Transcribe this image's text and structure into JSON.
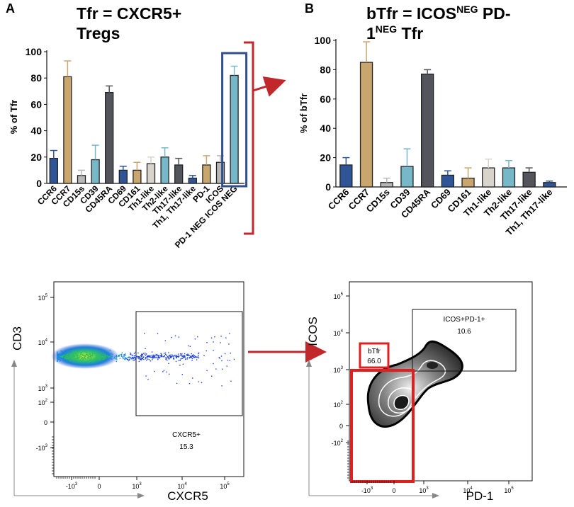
{
  "panels": {
    "a": {
      "letter": "A",
      "title_line1": "Tfr = CXCR5+",
      "title_line2": "Tregs"
    },
    "b": {
      "letter": "B",
      "title_pre": "bTfr = ICOS",
      "title_sup1": "NEG",
      "title_mid": " PD-",
      "title_line2_pre": "1",
      "title_sup2": "NEG",
      "title_line2_post": " Tfr"
    }
  },
  "chart_data": [
    {
      "type": "bar",
      "title": "Tfr = CXCR5+ Tregs",
      "ylabel": "% of Tfr",
      "xlabel": "",
      "ylim": [
        0,
        100
      ],
      "yticks": [
        "0",
        "20",
        "40",
        "60",
        "80",
        "100"
      ],
      "categories": [
        "CCR6",
        "CCR7",
        "CD15s",
        "CD39",
        "CD45RA",
        "CD69",
        "CD161",
        "Th1-like",
        "Th2-like",
        "Th17-like",
        "Th1, Th17-like",
        "PD-1",
        "ICOS",
        "PD-1 NEG ICOS NEG"
      ],
      "values": [
        19,
        81,
        6,
        18,
        69,
        10,
        10,
        15,
        20,
        14,
        4,
        14,
        16,
        82
      ],
      "errors": [
        6,
        12,
        4,
        11,
        5,
        3,
        6,
        5,
        7,
        5,
        2,
        7,
        5,
        7
      ],
      "colors": [
        "#2f5597",
        "#c8a66e",
        "#b8b8b8",
        "#76b7c8",
        "#54545c",
        "#2f5597",
        "#c8a66e",
        "#d8d4cc",
        "#76b7c8",
        "#54545c",
        "#2f5597",
        "#c8a66e",
        "#b8b8b8",
        "#76b7c8"
      ],
      "highlight_color": "#2f4f8f",
      "bracket_color": "#c0282c"
    },
    {
      "type": "bar",
      "title": "bTfr = ICOS NEG PD-1 NEG Tfr",
      "ylabel": "% of bTfr",
      "xlabel": "",
      "ylim": [
        0,
        100
      ],
      "yticks": [
        "0",
        "20",
        "40",
        "60",
        "80",
        "100"
      ],
      "categories": [
        "CCR6",
        "CCR7",
        "CD15s",
        "CD39",
        "CD45RA",
        "CD69",
        "CD161",
        "Th1-like",
        "Th2-like",
        "Th17-like",
        "Th1, Th17-like"
      ],
      "values": [
        15,
        85,
        3,
        14,
        77,
        8,
        6,
        13,
        13,
        10,
        3
      ],
      "errors": [
        5,
        14,
        3,
        12,
        3,
        3,
        7,
        6,
        5,
        3,
        1
      ],
      "colors": [
        "#2f5597",
        "#c8a66e",
        "#b8b8b8",
        "#76b7c8",
        "#54545c",
        "#2f5597",
        "#c8a66e",
        "#d8d4cc",
        "#76b7c8",
        "#54545c",
        "#2f5597"
      ]
    }
  ],
  "flow": {
    "left": {
      "ylabel": "CD3",
      "xlabel": "CXCR5",
      "yticks": [
        "10",
        "10",
        "10",
        "10",
        "0",
        "-10"
      ],
      "yexp": [
        "5",
        "4",
        "3",
        "2",
        "",
        "3"
      ],
      "xticks": [
        "-10",
        "0",
        "10",
        "10",
        "10"
      ],
      "xexp": [
        "3",
        "",
        "3",
        "4",
        "5"
      ],
      "gate_name": "CXCR5+",
      "gate_value": "15.3"
    },
    "right": {
      "ylabel": "ICOS",
      "xlabel": "PD-1",
      "yticks": [
        "10",
        "10",
        "10",
        "10",
        "0",
        "-10"
      ],
      "yexp": [
        "5",
        "4",
        "3",
        "2",
        "",
        "2"
      ],
      "xticks": [
        "-10",
        "0",
        "10",
        "10",
        "10"
      ],
      "xexp": [
        "3",
        "",
        "3",
        "4",
        "5"
      ],
      "gate_top_name": "ICOS+PD-1+",
      "gate_top_value": "10.6",
      "gate_b_name": "bTfr",
      "gate_b_value": "66.0"
    }
  },
  "colors": {
    "arrow": "#c0282c",
    "gate_red": "#e02020",
    "highlight_box": "#2f4f8f"
  }
}
